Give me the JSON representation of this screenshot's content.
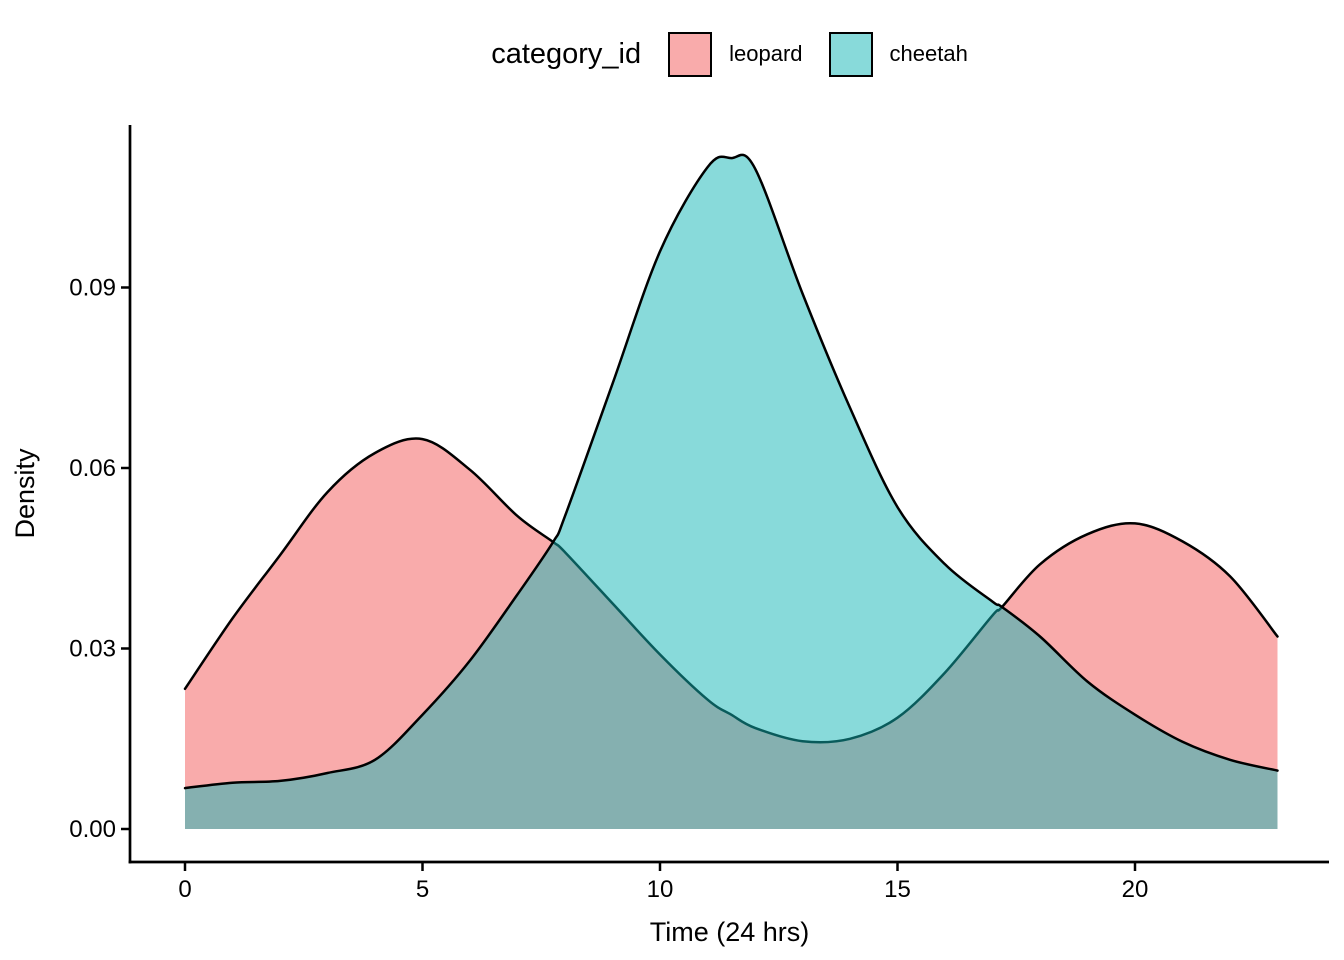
{
  "figure": {
    "background": "#FFFFFF"
  },
  "chart_data": {
    "type": "area",
    "subtype": "overlapping-density",
    "title": "",
    "xlabel": "Time (24 hrs)",
    "ylabel": "Density",
    "xlim": [
      0,
      23
    ],
    "ylim": [
      0,
      0.117
    ],
    "grid": "off",
    "x_ticks": {
      "values": [
        0,
        5,
        10,
        15,
        20
      ],
      "labels": [
        "0",
        "5",
        "10",
        "15",
        "20"
      ]
    },
    "y_ticks": {
      "values": [
        0,
        0.03,
        0.06,
        0.09
      ],
      "labels": [
        "0.00",
        "0.03",
        "0.06",
        "0.09"
      ]
    },
    "legend": {
      "title": "category_id",
      "position": "top"
    },
    "colors": {
      "leopard_fill": "#F9ABAB",
      "cheetah_fill": "rgba(17,181,181,0.5)",
      "cheetah_swatch": "#88DADA",
      "overlap_observed": "#85B0AE",
      "stroke": "#000000",
      "axis": "#000000",
      "text": "#000000"
    },
    "x": [
      0,
      1,
      2,
      3,
      4,
      5,
      6,
      7,
      7.75,
      8,
      9,
      10,
      11,
      11.5,
      12,
      13,
      14,
      15,
      16,
      17,
      17.2,
      18,
      19,
      20,
      21,
      22,
      23
    ],
    "series": [
      {
        "name": "leopard",
        "values": [
          0.0233,
          0.035,
          0.0455,
          0.056,
          0.0625,
          0.0648,
          0.0597,
          0.052,
          0.0477,
          0.046,
          0.0375,
          0.029,
          0.0215,
          0.019,
          0.0168,
          0.0146,
          0.015,
          0.0185,
          0.026,
          0.0355,
          0.0369,
          0.044,
          0.049,
          0.0508,
          0.0478,
          0.042,
          0.032
        ]
      },
      {
        "name": "cheetah",
        "values": [
          0.0068,
          0.0077,
          0.008,
          0.0093,
          0.0115,
          0.019,
          0.028,
          0.039,
          0.0477,
          0.052,
          0.074,
          0.096,
          0.11,
          0.1115,
          0.1098,
          0.089,
          0.07,
          0.0535,
          0.044,
          0.0378,
          0.0369,
          0.032,
          0.0245,
          0.019,
          0.0145,
          0.0115,
          0.0097
        ]
      }
    ]
  }
}
